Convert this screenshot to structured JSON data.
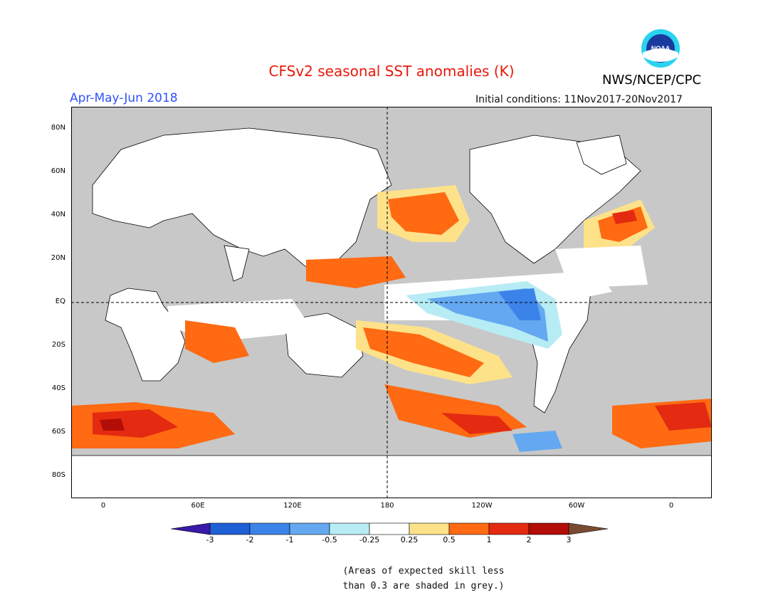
{
  "title": "CFSv2 seasonal SST anomalies (K)",
  "agency": "NWS/NCEP/CPC",
  "logo_text": "NOAA",
  "season": "Apr-May-Jun 2018",
  "initial_conditions": "Initial conditions: 11Nov2017-20Nov2017",
  "lat_labels": [
    "80N",
    "60N",
    "40N",
    "20N",
    "EQ",
    "20S",
    "40S",
    "60S",
    "80S"
  ],
  "lon_labels": [
    "0",
    "60E",
    "120E",
    "180",
    "120W",
    "60W",
    "0"
  ],
  "colorbar": {
    "labels": [
      "-3",
      "-2",
      "-1",
      "-0.5",
      "-0.25",
      "0.25",
      "0.5",
      "1",
      "2",
      "3"
    ],
    "colors": [
      "#3a1aa8",
      "#1f5fd6",
      "#3b83e8",
      "#63a8f0",
      "#b7ecf4",
      "#ffffff",
      "#fde28a",
      "#ff6a12",
      "#e42a10",
      "#b30d08",
      "#7a4b33"
    ]
  },
  "note_line1": "(Areas of expected skill less",
  "note_line2": "than 0.3 are shaded in grey.)",
  "colors": {
    "land": "#ffffff",
    "grey_low_skill": "#c8c8c8",
    "title": "#e8190a",
    "season": "#2f52ff"
  }
}
